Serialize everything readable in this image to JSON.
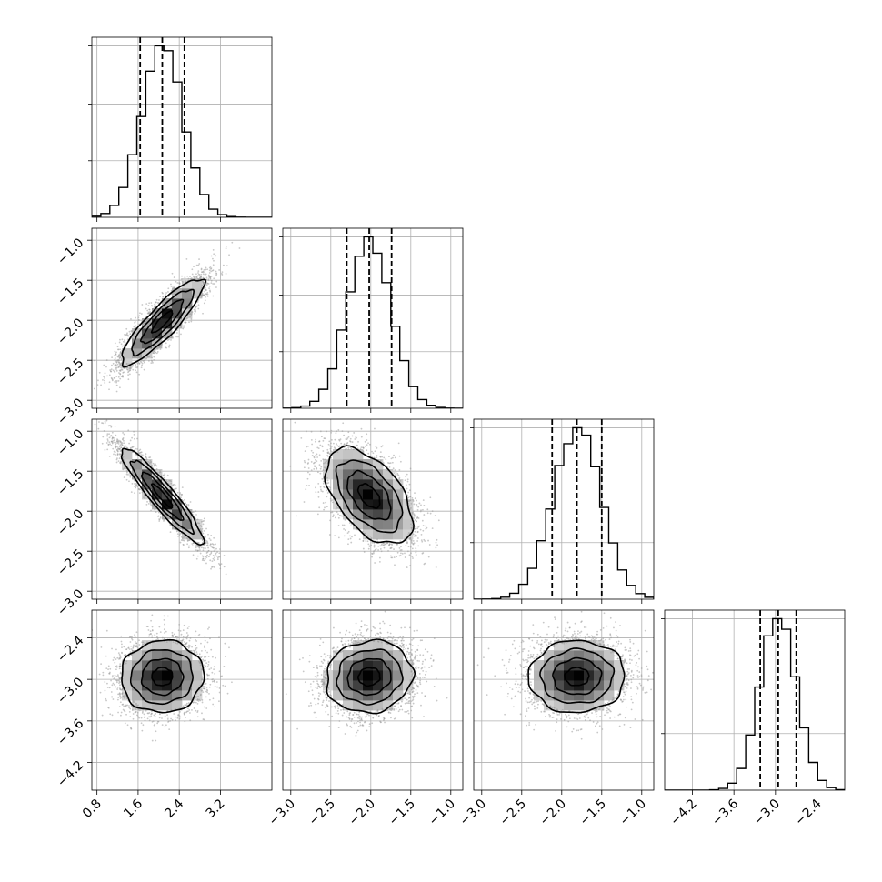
{
  "chart_data": {
    "type": "corner",
    "grid": true,
    "colors": {
      "line": "#000000",
      "points": "#9a9a9a",
      "grid": "#b0b0b0",
      "background": "#ffffff"
    },
    "parameters": [
      {
        "range": [
          0.7,
          4.2
        ],
        "ticks": [
          0.8,
          1.6,
          2.4,
          3.2
        ],
        "tick_labels": [
          "0.8",
          "1.6",
          "2.4",
          "3.2"
        ],
        "mean": 2.07,
        "sigma": 0.4,
        "quantiles": [
          1.64,
          2.07,
          2.5
        ]
      },
      {
        "range": [
          -3.1,
          -0.85
        ],
        "ticks": [
          -3.0,
          -2.5,
          -2.0,
          -1.5,
          -1.0
        ],
        "tick_labels": [
          "−3.0",
          "−2.5",
          "−2.0",
          "−1.5",
          "−1.0"
        ],
        "mean": -2.02,
        "sigma": 0.27,
        "quantiles": [
          -2.3,
          -2.02,
          -1.74
        ]
      },
      {
        "range": [
          -3.1,
          -0.85
        ],
        "ticks": [
          -3.0,
          -2.5,
          -2.0,
          -1.5,
          -1.0
        ],
        "tick_labels": [
          "−3.0",
          "−2.5",
          "−2.0",
          "−1.5",
          "−1.0"
        ],
        "mean": -1.81,
        "sigma": 0.3,
        "quantiles": [
          -2.12,
          -1.81,
          -1.5
        ]
      },
      {
        "range": [
          -4.6,
          -2.0
        ],
        "ticks": [
          -4.2,
          -3.6,
          -3.0,
          -2.4
        ],
        "tick_labels": [
          "−4.2",
          "−3.6",
          "−3.0",
          "−2.4"
        ],
        "mean": -2.96,
        "sigma": 0.26,
        "quantiles": [
          -3.22,
          -2.96,
          -2.7
        ]
      }
    ],
    "correlations": [
      {
        "row": 1,
        "col": 0,
        "rho": 0.88
      },
      {
        "row": 2,
        "col": 0,
        "rho": -0.93
      },
      {
        "row": 2,
        "col": 1,
        "rho": -0.52
      },
      {
        "row": 3,
        "col": 0,
        "rho": 0.03
      },
      {
        "row": 3,
        "col": 1,
        "rho": 0.08
      },
      {
        "row": 3,
        "col": 2,
        "rho": 0.02
      }
    ],
    "contour_levels_sigma": [
      0.5,
      1.0,
      1.5,
      2.0
    ]
  }
}
